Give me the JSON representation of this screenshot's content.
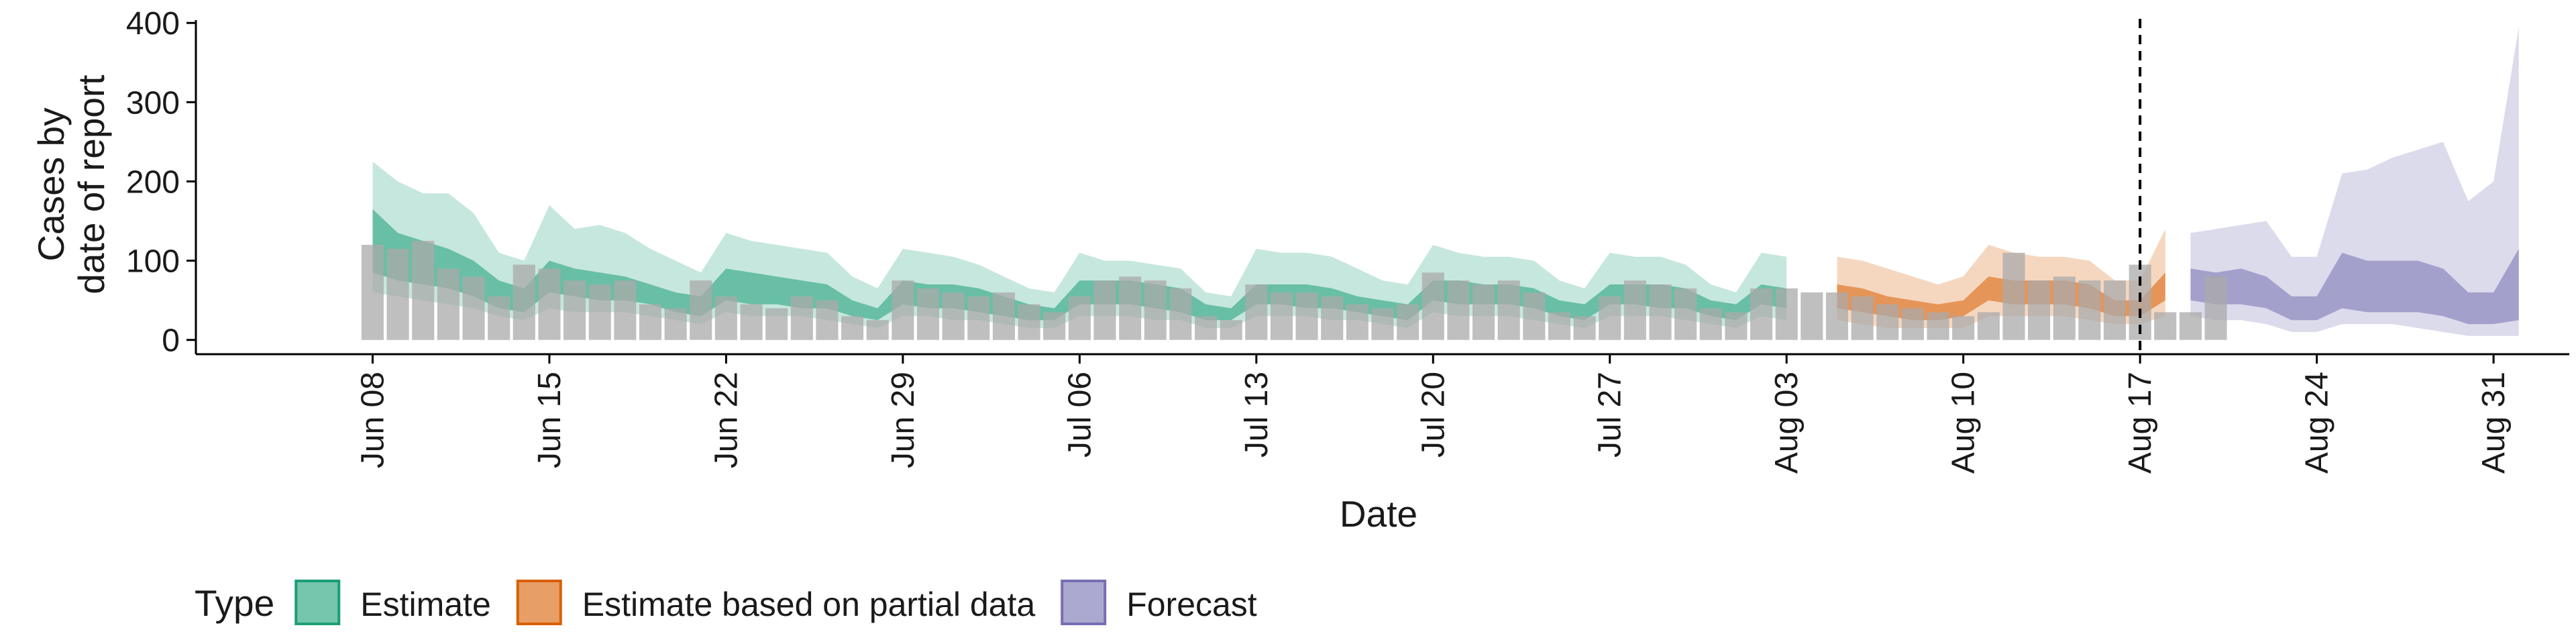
{
  "chart_data": {
    "type": "area",
    "title": "",
    "xlabel": "Date",
    "ylabel": [
      "Cases by",
      "date of report"
    ],
    "ylim": [
      -18,
      412
    ],
    "xlim": [
      "2020-06-01",
      "2020-09-03"
    ],
    "y_ticks": [
      0,
      100,
      200,
      300,
      400
    ],
    "x_ticks": [
      {
        "date": "2020-06-08",
        "label": "Jun 08"
      },
      {
        "date": "2020-06-15",
        "label": "Jun 15"
      },
      {
        "date": "2020-06-22",
        "label": "Jun 22"
      },
      {
        "date": "2020-06-29",
        "label": "Jun 29"
      },
      {
        "date": "2020-07-06",
        "label": "Jul 06"
      },
      {
        "date": "2020-07-13",
        "label": "Jul 13"
      },
      {
        "date": "2020-07-20",
        "label": "Jul 20"
      },
      {
        "date": "2020-07-27",
        "label": "Jul 27"
      },
      {
        "date": "2020-08-03",
        "label": "Aug 03"
      },
      {
        "date": "2020-08-10",
        "label": "Aug 10"
      },
      {
        "date": "2020-08-17",
        "label": "Aug 17"
      },
      {
        "date": "2020-08-24",
        "label": "Aug 24"
      },
      {
        "date": "2020-08-31",
        "label": "Aug 31"
      }
    ],
    "vline_date": "2020-08-17",
    "grid": false,
    "legend": {
      "title": "Type",
      "position": "bottom",
      "entries": [
        {
          "label": "Estimate",
          "color": "#1b9e77"
        },
        {
          "label": "Estimate based on partial data",
          "color": "#d95f02"
        },
        {
          "label": "Forecast",
          "color": "#7570b3"
        }
      ]
    },
    "observed_cases": {
      "start_date": "2020-06-08",
      "color": "#a9a9a9",
      "values": [
        120,
        115,
        125,
        90,
        80,
        55,
        95,
        90,
        75,
        70,
        75,
        45,
        40,
        75,
        55,
        45,
        40,
        55,
        50,
        30,
        25,
        75,
        65,
        60,
        55,
        60,
        45,
        35,
        55,
        75,
        80,
        75,
        65,
        30,
        25,
        70,
        60,
        60,
        55,
        45,
        40,
        45,
        85,
        75,
        70,
        75,
        60,
        35,
        30,
        55,
        75,
        70,
        65,
        40,
        35,
        65,
        65,
        60,
        60,
        55,
        45,
        40,
        35,
        30,
        35,
        110,
        75,
        80,
        75,
        75,
        95,
        35,
        35,
        80
      ]
    },
    "series": [
      {
        "name": "Estimate",
        "color": "#1b9e77",
        "start_date": "2020-06-08",
        "upper90": [
          225,
          200,
          185,
          185,
          160,
          110,
          100,
          170,
          140,
          145,
          135,
          115,
          100,
          85,
          135,
          125,
          120,
          115,
          110,
          80,
          65,
          115,
          110,
          105,
          95,
          80,
          65,
          60,
          110,
          100,
          100,
          95,
          90,
          60,
          55,
          115,
          110,
          110,
          105,
          90,
          75,
          70,
          120,
          110,
          105,
          105,
          100,
          75,
          65,
          110,
          105,
          105,
          95,
          70,
          60,
          110,
          105
        ],
        "upper50": [
          165,
          135,
          125,
          115,
          100,
          75,
          65,
          100,
          90,
          85,
          80,
          70,
          60,
          55,
          90,
          85,
          80,
          75,
          70,
          50,
          40,
          75,
          70,
          70,
          65,
          55,
          45,
          40,
          75,
          75,
          75,
          70,
          65,
          45,
          40,
          70,
          70,
          70,
          65,
          55,
          50,
          45,
          75,
          75,
          70,
          70,
          65,
          50,
          45,
          70,
          70,
          70,
          65,
          50,
          45,
          70,
          65
        ],
        "lower50": [
          85,
          75,
          70,
          65,
          55,
          40,
          35,
          60,
          55,
          50,
          50,
          45,
          35,
          30,
          50,
          45,
          45,
          40,
          40,
          30,
          25,
          45,
          40,
          40,
          35,
          30,
          25,
          25,
          45,
          45,
          45,
          40,
          35,
          25,
          25,
          45,
          45,
          40,
          40,
          35,
          30,
          25,
          50,
          45,
          45,
          45,
          40,
          30,
          25,
          45,
          45,
          40,
          40,
          30,
          25,
          45,
          40
        ],
        "lower90": [
          60,
          55,
          50,
          45,
          40,
          30,
          25,
          40,
          35,
          35,
          35,
          30,
          25,
          20,
          35,
          30,
          30,
          30,
          25,
          20,
          15,
          30,
          30,
          25,
          25,
          20,
          15,
          15,
          30,
          30,
          30,
          25,
          25,
          15,
          15,
          30,
          30,
          30,
          25,
          25,
          20,
          15,
          35,
          30,
          30,
          30,
          25,
          20,
          15,
          30,
          30,
          30,
          25,
          20,
          15,
          30,
          25
        ]
      },
      {
        "name": "Estimate based on partial data",
        "color": "#d95f02",
        "start_date": "2020-08-05",
        "upper90": [
          105,
          100,
          90,
          80,
          70,
          80,
          120,
          110,
          105,
          105,
          100,
          75,
          75,
          140
        ],
        "upper50": [
          70,
          65,
          55,
          50,
          45,
          50,
          80,
          75,
          75,
          75,
          70,
          50,
          50,
          85
        ],
        "lower50": [
          40,
          35,
          30,
          25,
          25,
          30,
          50,
          45,
          45,
          45,
          40,
          30,
          30,
          50
        ],
        "lower90": [
          25,
          20,
          15,
          15,
          15,
          15,
          30,
          30,
          30,
          30,
          25,
          20,
          20,
          30
        ]
      },
      {
        "name": "Forecast",
        "color": "#7570b3",
        "start_date": "2020-08-19",
        "upper90": [
          135,
          140,
          145,
          150,
          105,
          105,
          210,
          215,
          230,
          240,
          250,
          175,
          200,
          395
        ],
        "upper50": [
          90,
          85,
          90,
          80,
          55,
          55,
          110,
          100,
          100,
          100,
          90,
          60,
          60,
          115
        ],
        "lower50": [
          50,
          45,
          45,
          40,
          25,
          25,
          40,
          35,
          35,
          35,
          30,
          20,
          20,
          25
        ],
        "lower90": [
          30,
          25,
          25,
          20,
          10,
          10,
          20,
          20,
          20,
          15,
          10,
          5,
          5,
          5
        ]
      }
    ]
  }
}
